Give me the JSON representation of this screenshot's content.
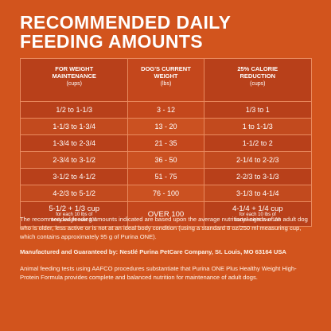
{
  "title_line1": "RECOMMENDED DAILY",
  "title_line2": "FEEDING AMOUNTS",
  "headers": [
    {
      "label_line1": "FOR WEIGHT",
      "label_line2": "MAINTENANCE",
      "unit": "(cups)"
    },
    {
      "label_line1": "DOG'S CURRENT",
      "label_line2": "WEIGHT",
      "unit": "(lbs)"
    },
    {
      "label_line1": "25% CALORIE",
      "label_line2": "REDUCTION",
      "unit": "(cups)"
    }
  ],
  "rows": [
    [
      "1/2 to 1-1/3",
      "3 - 12",
      "1/3 to 1"
    ],
    [
      "1-1/3 to 1-3/4",
      "13 - 20",
      "1 to 1-1/3"
    ],
    [
      "1-3/4 to 2-3/4",
      "21 - 35",
      "1-1/2 to 2"
    ],
    [
      "2-3/4 to 3-1/2",
      "36 - 50",
      "2-1/4 to 2-2/3"
    ],
    [
      "3-1/2 to 4-1/2",
      "51 - 75",
      "2-2/3 to 3-1/3"
    ],
    [
      "4-2/3 to 5-1/2",
      "76 - 100",
      "3-1/3 to 4-1/4"
    ]
  ],
  "last_row": {
    "col1": "5-1/2 + 1/3 cup",
    "col1_note_line1": "for each 10 lbs of",
    "col1_note_line2": "body weight over 100",
    "col2": "OVER 100",
    "col3": "4-1/4 + 1/4 cup",
    "col3_note_line1": "for each 10 lbs of",
    "col3_note_line2": "body weight over 100"
  },
  "paragraph1": "The recommended feeding amounts indicated are based upon the average nutritional needs of an adult dog who is older, less active or is not at an ideal body condition (using a standard 8 oz/250 ml measuring cup, which contains approximately 95 g of Purina ONE).",
  "paragraph2": "Manufactured and Guaranteed by: Nestlé Purina PetCare Company, St. Louis, MO 63164 USA",
  "paragraph3": "Animal feeding tests using AAFCO procedures substantiate that Purina ONE Plus Healthy Weight High-Protein Formula provides complete and balanced nutrition for maintenance of adult dogs."
}
